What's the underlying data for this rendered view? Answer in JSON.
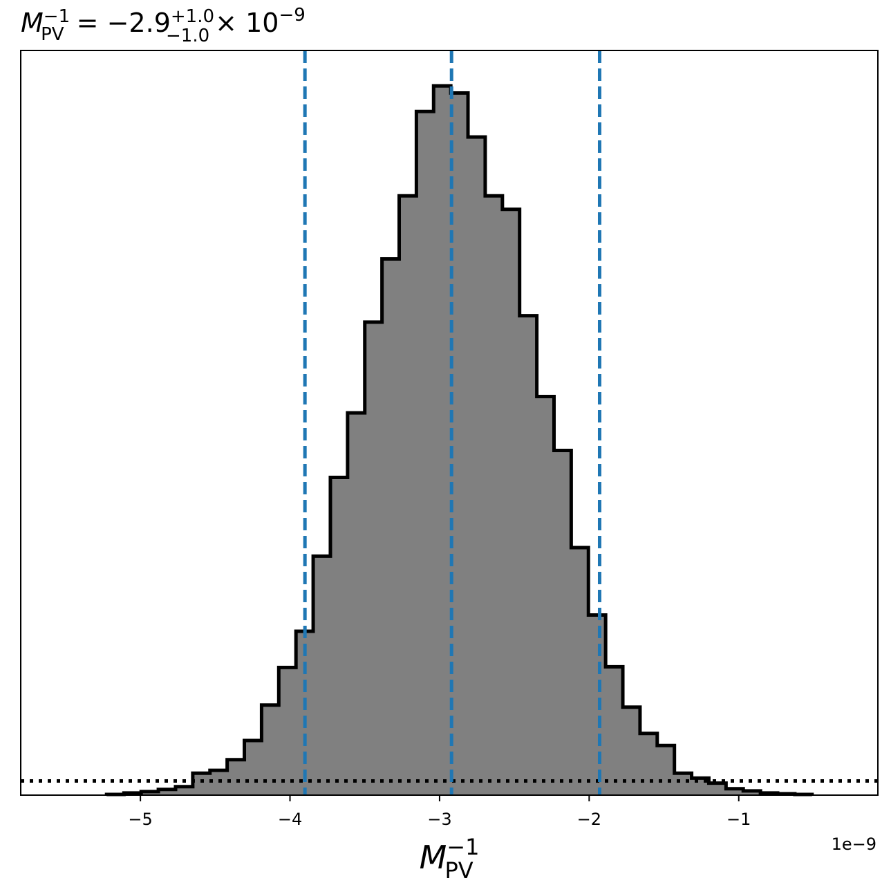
{
  "chart_data": {
    "type": "histogram",
    "title": {
      "sym": "M",
      "sub": "PV",
      "sup": "−1",
      "eq": " = −2.9",
      "plus": "+1.0",
      "minus": "−1.0",
      "times": "× 10",
      "exp": "−9"
    },
    "xlabel": {
      "sym": "M",
      "sub": "PV",
      "sup": "−1"
    },
    "x_offset_label": "1e−9",
    "x_unit_scale": 1e-09,
    "xlim": [
      -5.8,
      -0.07
    ],
    "ylim": [
      0,
      1.05
    ],
    "x_ticks": [
      {
        "value": -5,
        "label": "−5"
      },
      {
        "value": -4,
        "label": "−4"
      },
      {
        "value": -3,
        "label": "−3"
      },
      {
        "value": -2,
        "label": "−2"
      },
      {
        "value": -1,
        "label": "−1"
      }
    ],
    "bins": {
      "edges": [
        -5.226,
        -5.11,
        -4.995,
        -4.88,
        -4.765,
        -4.65,
        -4.535,
        -4.42,
        -4.305,
        -4.19,
        -4.075,
        -3.96,
        -3.845,
        -3.73,
        -3.615,
        -3.5,
        -3.385,
        -3.27,
        -3.155,
        -3.04,
        -2.925,
        -2.81,
        -2.695,
        -2.58,
        -2.465,
        -2.35,
        -2.235,
        -2.12,
        -2.005,
        -1.89,
        -1.775,
        -1.66,
        -1.545,
        -1.43,
        -1.315,
        -1.2,
        -1.085,
        -0.97,
        -0.855,
        -0.74,
        -0.625,
        -0.51
      ],
      "heights": [
        0.001,
        0.003,
        0.005,
        0.008,
        0.012,
        0.031,
        0.035,
        0.05,
        0.077,
        0.127,
        0.18,
        0.231,
        0.337,
        0.448,
        0.539,
        0.667,
        0.756,
        0.845,
        0.964,
        1.0,
        0.99,
        0.928,
        0.845,
        0.826,
        0.676,
        0.562,
        0.486,
        0.349,
        0.254,
        0.181,
        0.124,
        0.087,
        0.07,
        0.031,
        0.024,
        0.017,
        0.009,
        0.006,
        0.003,
        0.002,
        0.001
      ]
    },
    "fill_color": "#808080",
    "edge_color": "#000000",
    "quantile_lines": {
      "values": [
        -3.9,
        -2.92,
        -1.93
      ],
      "color": "#1f77b4",
      "style": "dashed"
    },
    "reference_line": {
      "y": 0.02,
      "color": "#000000",
      "style": "dotted"
    }
  }
}
